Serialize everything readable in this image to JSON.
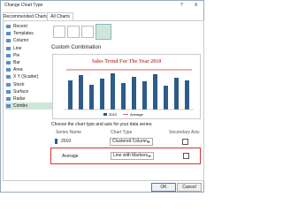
{
  "window": {
    "title": "Change Chart Type",
    "help": "?",
    "close": "X"
  },
  "tabs": [
    "Recommended Charts",
    "All Charts"
  ],
  "chart_types": [
    "Recent",
    "Templates",
    "Column",
    "Line",
    "Pie",
    "Bar",
    "Area",
    "X Y (Scatter)",
    "Stock",
    "Surface",
    "Radar",
    "Combo"
  ],
  "section_title": "Custom Combination",
  "preview": {
    "title": "Sales Trend For The Year 2010",
    "legend": [
      "2010",
      "Average"
    ]
  },
  "series_prompt": "Choose the chart type and axis for your data series:",
  "table": {
    "header": [
      "Series Name",
      "Chart Type",
      "Secondary Axis"
    ],
    "rows": [
      [
        "2010",
        "Clustered Column"
      ],
      [
        "Average",
        "Line with Markers"
      ]
    ]
  },
  "buttons": [
    "OK",
    "Cancel"
  ]
}
